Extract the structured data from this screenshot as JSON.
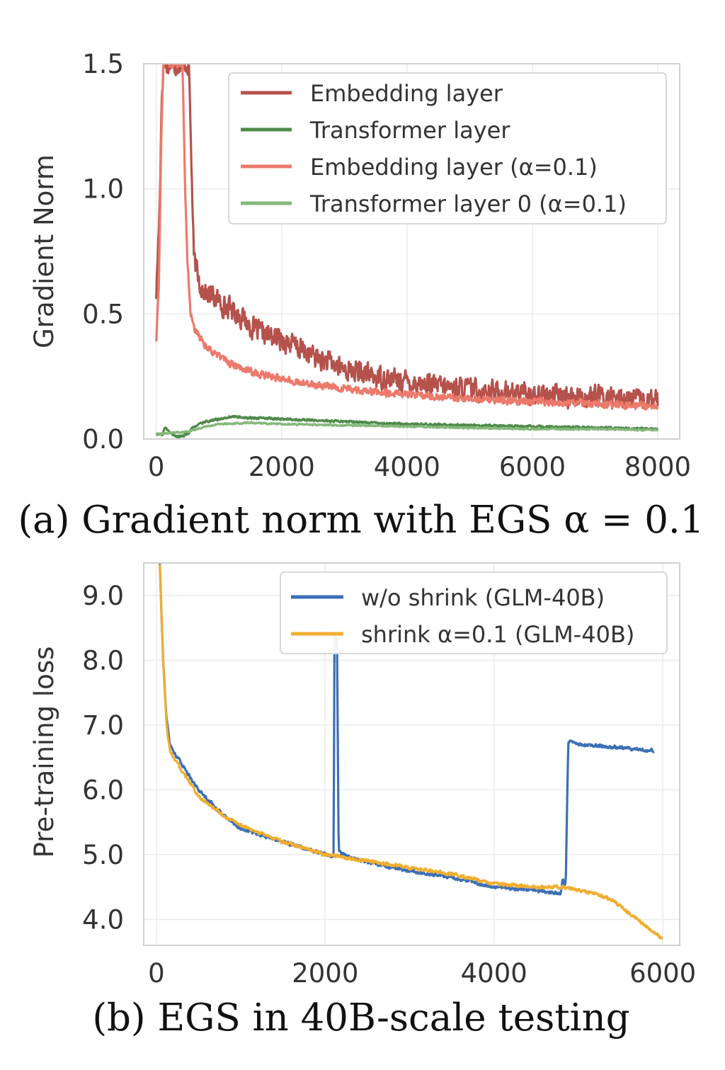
{
  "chart_data": [
    {
      "type": "line",
      "caption": "(a) Gradient norm with EGS α = 0.1",
      "xlabel": "",
      "ylabel": "Gradient Norm",
      "xlim": [
        -200,
        8350
      ],
      "ylim": [
        0,
        1.5
      ],
      "xticks": [
        0,
        2000,
        4000,
        6000,
        8000
      ],
      "yticks": [
        0.0,
        0.5,
        1.0,
        1.5
      ],
      "xtick_labels": [
        "0",
        "2000",
        "4000",
        "6000",
        "8000"
      ],
      "ytick_labels": [
        "0.0",
        "0.5",
        "1.0",
        "1.5"
      ],
      "grid": true,
      "legend_position": "top-right",
      "series": [
        {
          "name": "Embedding layer",
          "color": "#b5524c",
          "noise": 0.06,
          "x": [
            0,
            50,
            90,
            120,
            160,
            250,
            350,
            450,
            520,
            600,
            700,
            800,
            900,
            1000,
            1100,
            1200,
            1300,
            1400,
            1500,
            1700,
            2000,
            2300,
            2600,
            3000,
            3500,
            4000,
            4500,
            5000,
            5500,
            6000,
            6500,
            7000,
            7500,
            8000
          ],
          "y": [
            0.58,
            0.9,
            1.4,
            1.5,
            1.5,
            1.5,
            1.5,
            1.5,
            1.5,
            0.72,
            0.62,
            0.58,
            0.57,
            0.55,
            0.53,
            0.52,
            0.5,
            0.48,
            0.45,
            0.42,
            0.4,
            0.36,
            0.32,
            0.28,
            0.25,
            0.23,
            0.21,
            0.2,
            0.19,
            0.18,
            0.17,
            0.17,
            0.16,
            0.15
          ]
        },
        {
          "name": "Transformer layer",
          "color": "#4f8a4a",
          "noise": 0.006,
          "x": [
            0,
            100,
            150,
            200,
            300,
            400,
            500,
            600,
            800,
            1000,
            1200,
            1500,
            2000,
            2500,
            3000,
            4000,
            5000,
            6000,
            7000,
            8000
          ],
          "y": [
            0.02,
            0.02,
            0.05,
            0.03,
            0.01,
            0.01,
            0.02,
            0.05,
            0.07,
            0.08,
            0.09,
            0.085,
            0.08,
            0.075,
            0.07,
            0.06,
            0.055,
            0.05,
            0.045,
            0.04
          ]
        },
        {
          "name": "Embedding layer (α=0.1)",
          "color": "#ec7a6b",
          "noise": 0.02,
          "x": [
            0,
            40,
            80,
            110,
            140,
            380,
            420,
            460,
            500,
            550,
            600,
            700,
            800,
            1000,
            1200,
            1500,
            2000,
            2500,
            3000,
            3500,
            4000,
            5000,
            6000,
            7000,
            8000
          ],
          "y": [
            0.4,
            0.6,
            1.2,
            1.5,
            1.5,
            1.5,
            1.5,
            1.0,
            0.7,
            0.5,
            0.45,
            0.4,
            0.37,
            0.33,
            0.3,
            0.27,
            0.24,
            0.22,
            0.2,
            0.19,
            0.18,
            0.16,
            0.15,
            0.14,
            0.13
          ]
        },
        {
          "name": "Transformer layer 0 (α=0.1)",
          "color": "#86b87c",
          "noise": 0.004,
          "x": [
            0,
            500,
            800,
            1000,
            1500,
            2000,
            3000,
            4000,
            5000,
            6000,
            7000,
            8000
          ],
          "y": [
            0.02,
            0.03,
            0.05,
            0.06,
            0.065,
            0.06,
            0.055,
            0.05,
            0.045,
            0.04,
            0.04,
            0.035
          ]
        }
      ]
    },
    {
      "type": "line",
      "caption": "(b) EGS in 40B-scale testing",
      "xlabel": "",
      "ylabel": "Pre-training loss",
      "xlim": [
        -150,
        6200
      ],
      "ylim": [
        3.6,
        9.5
      ],
      "xticks": [
        0,
        2000,
        4000,
        6000
      ],
      "yticks": [
        4.0,
        5.0,
        6.0,
        7.0,
        8.0,
        9.0
      ],
      "xtick_labels": [
        "0",
        "2000",
        "4000",
        "6000"
      ],
      "ytick_labels": [
        "4.0",
        "5.0",
        "6.0",
        "7.0",
        "8.0",
        "9.0"
      ],
      "grid": true,
      "legend_position": "top-right",
      "series": [
        {
          "name": "w/o shrink (GLM-40B)",
          "color": "#3d6fb6",
          "noise": 0.035,
          "x": [
            40,
            80,
            120,
            160,
            200,
            300,
            500,
            800,
            1000,
            1500,
            2000,
            2100,
            2110,
            2140,
            2160,
            2300,
            2600,
            3000,
            3500,
            4000,
            4500,
            4790,
            4810,
            4850,
            4880,
            5000,
            5500,
            5900
          ],
          "y": [
            9.5,
            8.0,
            7.1,
            6.7,
            6.6,
            6.4,
            6.0,
            5.6,
            5.4,
            5.2,
            5.0,
            4.98,
            8.4,
            8.3,
            5.05,
            4.95,
            4.85,
            4.75,
            4.65,
            4.5,
            4.45,
            4.4,
            4.6,
            4.55,
            6.75,
            6.7,
            6.65,
            6.6
          ]
        },
        {
          "name": "shrink α=0.1 (GLM-40B)",
          "color": "#f0ae30",
          "noise": 0.035,
          "x": [
            40,
            80,
            120,
            160,
            200,
            300,
            500,
            800,
            1000,
            1500,
            2000,
            2500,
            3000,
            3500,
            4000,
            4500,
            4800,
            5000,
            5200,
            5400,
            5600,
            5800,
            6000
          ],
          "y": [
            9.5,
            8.0,
            7.0,
            6.6,
            6.5,
            6.3,
            5.9,
            5.6,
            5.45,
            5.2,
            5.0,
            4.9,
            4.8,
            4.7,
            4.55,
            4.5,
            4.5,
            4.45,
            4.4,
            4.3,
            4.1,
            3.9,
            3.7
          ]
        }
      ]
    }
  ]
}
